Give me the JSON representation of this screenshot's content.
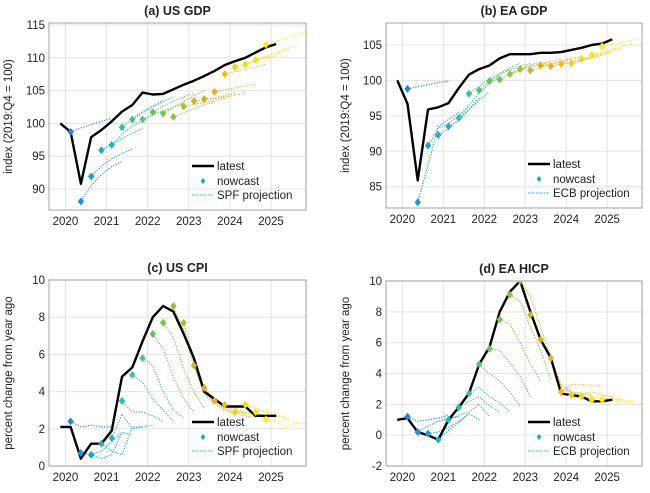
{
  "legend_colors": {
    "latest": "#000000",
    "ramp": [
      "#2f7fd6",
      "#21a9c9",
      "#3bbf9a",
      "#6cc15a",
      "#a9bf37",
      "#e8a630",
      "#f2d21e",
      "#f7ee1a"
    ]
  },
  "chart_data": [
    {
      "type": "line",
      "title": "(a) US GDP",
      "ylabel": "index (2019:Q4 = 100)",
      "xlim": [
        2019.6,
        2025.85
      ],
      "ylim": [
        86.8,
        115.3
      ],
      "xticks": [
        2020,
        2021,
        2022,
        2023,
        2024,
        2025
      ],
      "yticks": [
        90,
        95,
        100,
        105,
        110,
        115
      ],
      "grid": true,
      "legend_position": "bottom-right",
      "legend": [
        "latest",
        "nowcast",
        "SPF projection"
      ],
      "latest": {
        "start": 2019.875,
        "step": 0.25,
        "values": [
          100,
          98.7,
          90.8,
          97.9,
          99.0,
          100.3,
          101.8,
          102.8,
          104.7,
          104.4,
          104.5,
          105.2,
          105.9,
          106.5,
          107.2,
          108.0,
          108.9,
          109.5,
          110.0,
          110.8,
          111.6,
          112.1
        ]
      },
      "nowcast": {
        "start": 2020.125,
        "step": 0.25,
        "values": [
          98.7,
          88.1,
          91.9,
          95.9,
          96.7,
          99.4,
          100.6,
          100.6,
          101.7,
          101.5,
          101.0,
          102.6,
          103.4,
          103.7,
          104.8,
          107.5,
          108.6,
          109.0,
          109.7,
          112.0
        ]
      },
      "projections": [
        [
          98.7,
          99.3,
          99.8,
          100.3,
          100.8
        ],
        [
          88.1,
          90.5,
          92.2,
          93.4,
          94.2
        ],
        [
          91.9,
          93.5,
          94.6,
          95.4,
          96.1
        ],
        [
          95.9,
          96.8,
          97.7,
          98.5,
          99.2
        ],
        [
          96.7,
          98.3,
          99.6,
          100.5,
          101.3
        ],
        [
          99.4,
          100.7,
          101.8,
          102.7,
          103.5
        ],
        [
          100.6,
          101.6,
          102.5,
          103.3,
          104.0
        ],
        [
          100.6,
          101.3,
          101.9,
          102.5,
          103.0
        ],
        [
          101.7,
          102.6,
          103.4,
          104.0,
          104.6
        ],
        [
          101.5,
          102.4,
          103.3,
          104.2,
          105.0
        ],
        [
          101.0,
          101.6,
          102.2,
          102.8,
          103.3
        ],
        [
          102.6,
          102.9,
          103.2,
          103.5,
          103.8
        ],
        [
          103.4,
          103.6,
          103.9,
          104.2,
          104.7
        ],
        [
          103.7,
          103.8,
          104.0,
          104.3,
          104.7
        ],
        [
          104.8,
          105.1,
          105.4,
          105.7,
          106.0
        ],
        [
          107.5,
          107.9,
          108.3,
          108.6,
          109.0
        ],
        [
          108.6,
          109.0,
          109.5,
          109.9,
          110.3
        ],
        [
          109.0,
          109.6,
          110.2,
          110.7,
          111.2
        ],
        [
          109.7,
          110.2,
          110.7,
          111.3,
          111.9
        ],
        [
          112.0,
          112.5,
          113.0,
          113.5,
          114.0,
          114.5
        ]
      ]
    },
    {
      "type": "line",
      "title": "(b) EA GDP",
      "ylabel": "index (2019:Q4 = 100)",
      "xlim": [
        2019.6,
        2025.85
      ],
      "ylim": [
        82.0,
        108.1
      ],
      "xticks": [
        2020,
        2021,
        2022,
        2023,
        2024,
        2025
      ],
      "yticks": [
        85,
        90,
        95,
        100,
        105
      ],
      "grid": true,
      "legend_position": "bottom-right",
      "legend": [
        "latest",
        "nowcast",
        "ECB projection"
      ],
      "latest": {
        "start": 2019.875,
        "step": 0.25,
        "values": [
          100,
          96.7,
          85.9,
          95.9,
          96.2,
          96.8,
          98.9,
          100.8,
          101.6,
          102.1,
          103.1,
          103.7,
          103.7,
          103.7,
          103.9,
          103.9,
          104.0,
          104.3,
          104.6,
          105.0,
          105.2,
          105.8
        ]
      },
      "nowcast": {
        "start": 2020.125,
        "step": 0.25,
        "values": [
          98.8,
          82.8,
          90.8,
          92.3,
          93.5,
          94.7,
          98.1,
          98.6,
          99.9,
          100.1,
          100.9,
          101.6,
          101.4,
          102.1,
          102.0,
          102.3,
          102.4,
          103.0,
          103.6,
          104.8
        ]
      },
      "projections": [
        [
          98.8,
          99.1,
          99.4,
          99.7,
          99.9
        ],
        [
          82.8,
          88.0,
          93.5,
          94.5,
          95.5
        ],
        [
          90.8,
          93.3,
          93.9,
          95.0,
          96.5
        ],
        [
          92.3,
          93.2,
          94.5,
          96.0,
          97.5
        ],
        [
          93.5,
          94.3,
          95.8,
          97.2,
          98.4
        ],
        [
          94.7,
          96.5,
          98.2,
          99.5,
          100.6
        ],
        [
          98.1,
          99.2,
          100.2,
          101.0,
          101.6
        ],
        [
          98.6,
          99.8,
          100.9,
          101.8,
          102.4
        ],
        [
          99.9,
          100.8,
          101.5,
          102.0,
          102.4
        ],
        [
          100.1,
          100.9,
          101.6,
          102.2,
          102.6
        ],
        [
          100.9,
          101.4,
          101.9,
          102.3,
          102.7
        ],
        [
          101.6,
          101.9,
          102.3,
          102.6,
          103.0
        ],
        [
          101.4,
          101.8,
          102.3,
          102.7,
          103.2
        ],
        [
          102.1,
          102.3,
          102.6,
          103.0,
          103.4
        ],
        [
          102.0,
          102.3,
          102.6,
          102.9,
          103.2
        ],
        [
          102.3,
          102.6,
          102.9,
          103.2,
          103.6
        ],
        [
          102.4,
          102.8,
          103.2,
          103.6,
          104.0
        ],
        [
          103.0,
          103.4,
          103.8,
          104.2,
          104.6
        ],
        [
          103.6,
          104.0,
          104.4,
          104.8,
          105.2
        ],
        [
          104.8,
          105.1,
          105.4,
          105.7,
          106.0
        ]
      ]
    },
    {
      "type": "line",
      "title": "(c) US CPI",
      "ylabel": "percent change from year ago",
      "xlim": [
        2019.6,
        2025.85
      ],
      "ylim": [
        0,
        10
      ],
      "xticks": [
        2020,
        2021,
        2022,
        2023,
        2024,
        2025
      ],
      "yticks": [
        0,
        2,
        4,
        6,
        8,
        10
      ],
      "grid": true,
      "legend_position": "bottom-right",
      "legend": [
        "latest",
        "nowcast",
        "SPF projection"
      ],
      "latest": {
        "start": 2019.875,
        "step": 0.25,
        "values": [
          2.1,
          2.1,
          0.4,
          1.2,
          1.2,
          1.9,
          4.8,
          5.3,
          6.7,
          8.0,
          8.6,
          8.3,
          7.1,
          5.8,
          4.0,
          3.6,
          3.2,
          3.2,
          3.2,
          2.7,
          2.7,
          2.7
        ]
      },
      "nowcast": {
        "start": 2020.125,
        "step": 0.25,
        "values": [
          2.4,
          0.7,
          0.6,
          1.2,
          1.5,
          3.5,
          4.9,
          5.8,
          7.1,
          7.7,
          8.6,
          7.7,
          5.4,
          4.2,
          3.5,
          3.3,
          2.9,
          3.3,
          2.9,
          2.5
        ]
      },
      "projections": [
        [
          2.4,
          2.1,
          2.2,
          2.1,
          2.1
        ],
        [
          0.7,
          0.6,
          0.8,
          1.3,
          1.8
        ],
        [
          0.6,
          0.4,
          0.6,
          1.8,
          1.7
        ],
        [
          1.2,
          0.8,
          0.6,
          2.1,
          2.1
        ],
        [
          1.5,
          2.8,
          2.0,
          2.1,
          2.2
        ],
        [
          3.5,
          2.9,
          2.9,
          2.7,
          2.4
        ],
        [
          4.9,
          4.5,
          3.6,
          3.0,
          2.4
        ],
        [
          5.8,
          5.4,
          4.0,
          3.0,
          2.6
        ],
        [
          7.1,
          6.3,
          4.8,
          3.6,
          2.9
        ],
        [
          7.7,
          6.9,
          5.2,
          4.0,
          3.1
        ],
        [
          8.6,
          7.3,
          5.4,
          3.9,
          3.3
        ],
        [
          7.7,
          5.8,
          4.2,
          3.4,
          3.0
        ],
        [
          5.4,
          4.0,
          3.4,
          3.0,
          2.8
        ],
        [
          4.2,
          3.6,
          3.2,
          3.0,
          2.8
        ],
        [
          3.5,
          3.1,
          2.9,
          2.7,
          2.6
        ],
        [
          3.3,
          3.1,
          2.9,
          2.7,
          2.6
        ],
        [
          2.9,
          2.9,
          2.8,
          2.7,
          2.6
        ],
        [
          3.3,
          3.1,
          2.9,
          2.7,
          2.6
        ],
        [
          2.9,
          3.0,
          2.8,
          2.5,
          2.3
        ],
        [
          2.5,
          2.4,
          2.1,
          2.3,
          2.3
        ]
      ]
    },
    {
      "type": "line",
      "title": "(d) EA HICP",
      "ylabel": "percent change from year ago",
      "xlim": [
        2019.6,
        2025.85
      ],
      "ylim": [
        -2,
        10
      ],
      "xticks": [
        2020,
        2021,
        2022,
        2023,
        2024,
        2025
      ],
      "yticks": [
        -2,
        0,
        2,
        4,
        6,
        8,
        10
      ],
      "grid": true,
      "legend_position": "bottom-right",
      "legend": [
        "latest",
        "nowcast",
        "ECB projection"
      ],
      "latest": {
        "start": 2019.875,
        "step": 0.25,
        "values": [
          1.0,
          1.1,
          0.2,
          0.0,
          -0.3,
          1.0,
          1.8,
          2.7,
          4.6,
          5.7,
          8.0,
          9.3,
          10.0,
          8.0,
          6.2,
          5.0,
          2.7,
          2.6,
          2.5,
          2.2,
          2.2,
          2.3
        ]
      },
      "nowcast": {
        "start": 2020.125,
        "step": 0.25,
        "values": [
          1.2,
          0.2,
          0.1,
          -0.3,
          1.0,
          1.8,
          2.7,
          4.6,
          5.6,
          7.5,
          9.1,
          10.0,
          7.8,
          6.2,
          5.0,
          2.8,
          2.6,
          2.5,
          2.3,
          2.3
        ]
      },
      "projections": [
        [
          1.2,
          0.9,
          1.0,
          1.1,
          1.3
        ],
        [
          0.2,
          0.6,
          0.9,
          1.1,
          1.2
        ],
        [
          0.1,
          0.2,
          0.5,
          0.9,
          1.4
        ],
        [
          -0.3,
          0.3,
          0.8,
          1.4,
          1.0
        ],
        [
          1.0,
          1.3,
          1.5,
          2.0,
          1.2
        ],
        [
          1.8,
          2.2,
          2.5,
          1.9,
          1.5
        ],
        [
          2.7,
          3.1,
          2.5,
          2.1,
          1.5
        ],
        [
          4.6,
          4.0,
          3.5,
          2.8,
          1.9
        ],
        [
          5.6,
          5.5,
          4.7,
          3.8,
          2.5
        ],
        [
          7.5,
          7.2,
          6.0,
          4.6,
          3.5
        ],
        [
          9.1,
          8.7,
          7.0,
          5.5,
          3.6
        ],
        [
          10.0,
          9.0,
          7.0,
          5.0,
          3.3
        ],
        [
          7.8,
          6.3,
          5.0,
          3.2,
          2.9
        ],
        [
          6.2,
          5.0,
          3.0,
          2.8,
          2.7
        ],
        [
          5.0,
          3.0,
          2.8,
          2.7,
          2.6
        ],
        [
          2.8,
          3.3,
          3.3,
          3.2,
          3.2
        ],
        [
          2.6,
          2.7,
          2.8,
          2.6,
          2.5
        ],
        [
          2.5,
          2.5,
          2.4,
          2.3,
          2.3
        ],
        [
          2.3,
          2.5,
          2.4,
          2.3,
          2.2
        ],
        [
          2.3,
          2.3,
          2.2,
          2.1,
          2.0
        ]
      ]
    }
  ]
}
